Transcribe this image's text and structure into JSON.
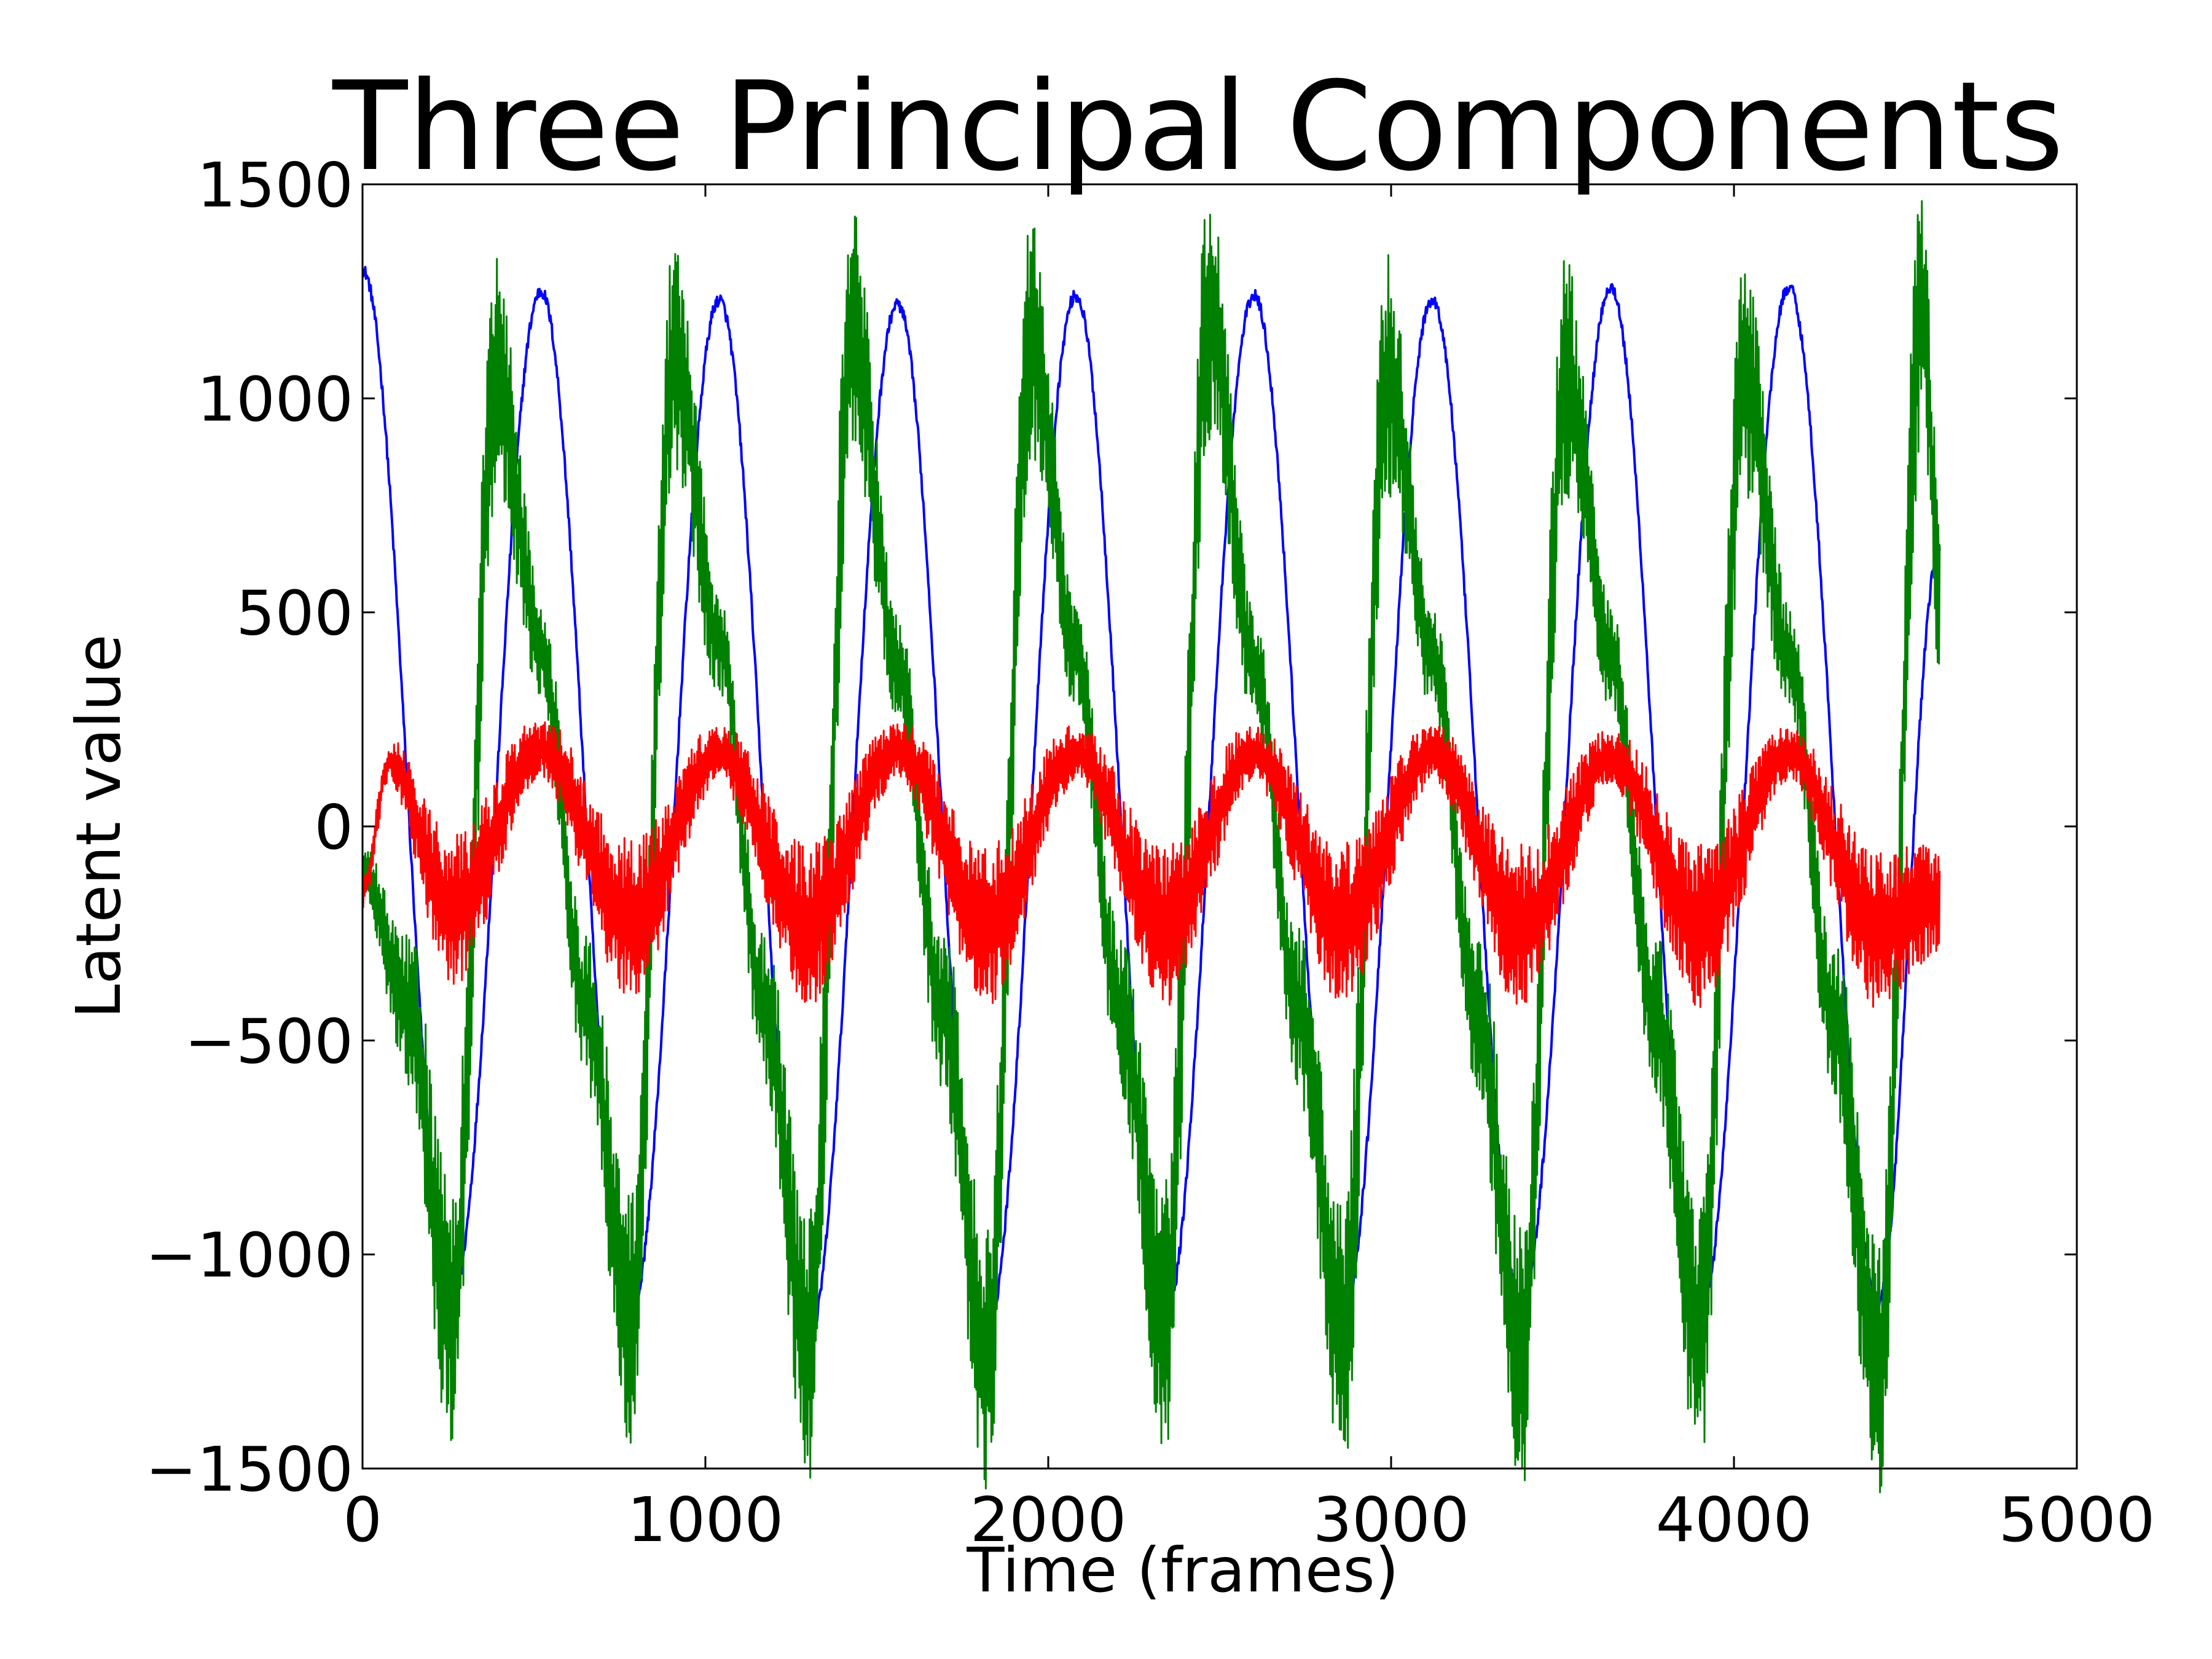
{
  "chart_data": {
    "type": "line",
    "title": "Three Principal Components",
    "xlabel": "Time (frames)",
    "ylabel": "Latent value",
    "xlim": [
      0,
      5000
    ],
    "ylim": [
      -1500,
      1500
    ],
    "x_ticks": [
      0,
      1000,
      2000,
      3000,
      4000,
      5000
    ],
    "x_tick_labels": [
      "0",
      "1000",
      "2000",
      "3000",
      "4000",
      "5000"
    ],
    "y_ticks": [
      -1500,
      -1000,
      -500,
      0,
      500,
      1000,
      1500
    ],
    "y_tick_labels": [
      "−1500",
      "−1000",
      "−500",
      "0",
      "500",
      "1000",
      "1500"
    ],
    "grid": false,
    "legend": "none",
    "frames": 4600,
    "series": [
      {
        "color": "#0000ff",
        "envelope_x": [
          0,
          260,
          520,
          780,
          1040,
          1300,
          1560,
          1820,
          2080,
          2340,
          2600,
          2860,
          3120,
          3380,
          3640,
          3900,
          4160,
          4420,
          4600
        ],
        "envelope_y": [
          1300,
          -1100,
          1250,
          -1150,
          1230,
          -1200,
          1220,
          -1180,
          1240,
          -1150,
          1240,
          -1140,
          1230,
          -1110,
          1260,
          -1150,
          1260,
          -1110,
          650
        ]
      },
      {
        "color": "#008000",
        "envelope_x": [
          0,
          130,
          260,
          390,
          520,
          650,
          780,
          910,
          1040,
          1170,
          1300,
          1430,
          1560,
          1690,
          1820,
          1950,
          2080,
          2210,
          2340,
          2470,
          2600,
          2730,
          2860,
          2990,
          3120,
          3250,
          3380,
          3510,
          3640,
          3770,
          3900,
          4030,
          4160,
          4290,
          4420,
          4550,
          4600
        ],
        "envelope_y": [
          -100,
          -420,
          -1150,
          1050,
          420,
          -420,
          -1150,
          1100,
          430,
          -420,
          -1220,
          1150,
          380,
          -420,
          -1250,
          1150,
          400,
          -430,
          -1150,
          1200,
          380,
          -430,
          -1200,
          1050,
          400,
          -430,
          -1250,
          1050,
          400,
          -440,
          -1200,
          1050,
          400,
          -440,
          -1280,
          1200,
          550
        ],
        "noise_amplitude": [
          40,
          180,
          320,
          290,
          110,
          180,
          320,
          290,
          110,
          180,
          320,
          300,
          110,
          190,
          320,
          300,
          110,
          190,
          320,
          300,
          110,
          190,
          320,
          290,
          110,
          190,
          320,
          290,
          110,
          190,
          320,
          290,
          110,
          190,
          320,
          300,
          200
        ]
      },
      {
        "color": "#ff0000",
        "envelope_x": [
          0,
          80,
          260,
          520,
          780,
          1040,
          1300,
          1560,
          1820,
          2080,
          2340,
          2600,
          2860,
          3120,
          3380,
          3640,
          3900,
          4160,
          4420,
          4600
        ],
        "envelope_y": [
          -150,
          150,
          -200,
          180,
          -220,
          170,
          -230,
          180,
          -230,
          170,
          -230,
          170,
          -230,
          170,
          -240,
          160,
          -230,
          170,
          -240,
          -170
        ],
        "noise_amplitude": [
          40,
          40,
          200,
          60,
          200,
          60,
          200,
          60,
          200,
          60,
          200,
          60,
          200,
          60,
          200,
          60,
          200,
          60,
          200,
          120
        ]
      }
    ]
  }
}
